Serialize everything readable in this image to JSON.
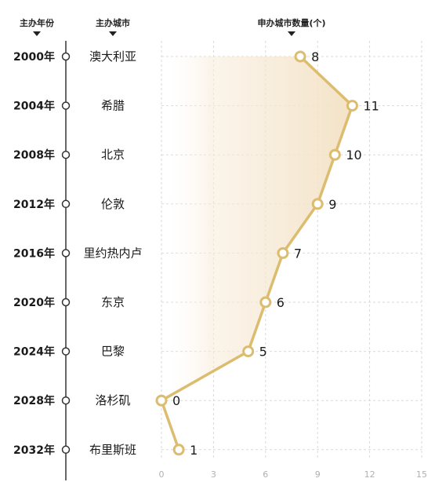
{
  "headers": {
    "year": "主办年份",
    "city": "主办城市",
    "count": "申办城市数量(个)"
  },
  "colors": {
    "accent": "#dcbc6f",
    "fill": "#f8ecda",
    "axis": "#333333",
    "grid": "#d9d9d9",
    "tick": "#b0b0b0"
  },
  "chart_data": {
    "type": "line",
    "title": "申办城市数量(个)",
    "orientation": "horizontal",
    "categories": [
      "2000年",
      "2004年",
      "2008年",
      "2012年",
      "2016年",
      "2020年",
      "2024年",
      "2028年",
      "2032年"
    ],
    "cities": [
      "澳大利亚",
      "希腊",
      "北京",
      "伦敦",
      "里约热内卢",
      "东京",
      "巴黎",
      "洛杉矶",
      "布里斯班"
    ],
    "values": [
      8,
      11,
      10,
      9,
      7,
      6,
      5,
      0,
      1
    ],
    "xlim": [
      0,
      15
    ],
    "xticks": [
      0,
      3,
      6,
      9,
      12,
      15
    ],
    "grid": true,
    "fill_under_line": true
  }
}
